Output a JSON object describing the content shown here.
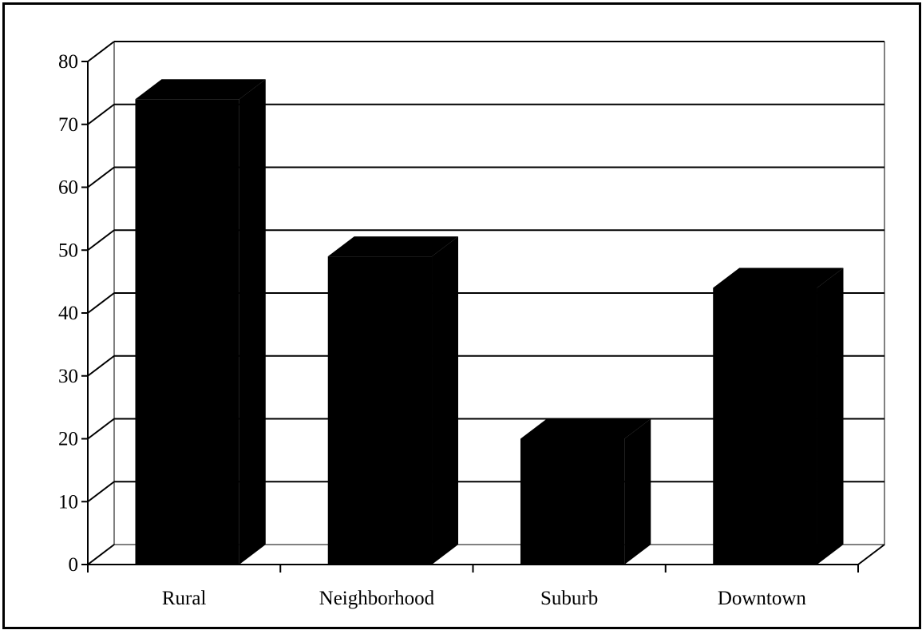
{
  "chart_data": {
    "type": "bar",
    "style": "3d",
    "categories": [
      "Rural",
      "Neighborhood",
      "Suburb",
      "Downtown"
    ],
    "values": [
      74,
      49,
      20,
      44
    ],
    "ylim": [
      0,
      80
    ],
    "yticks": [
      "0",
      "10",
      "20",
      "30",
      "40",
      "50",
      "60",
      "70",
      "80"
    ],
    "grid": true,
    "legend": false,
    "colors": {
      "bar": "#000000",
      "grid": "#000000",
      "background": "#ffffff"
    }
  }
}
